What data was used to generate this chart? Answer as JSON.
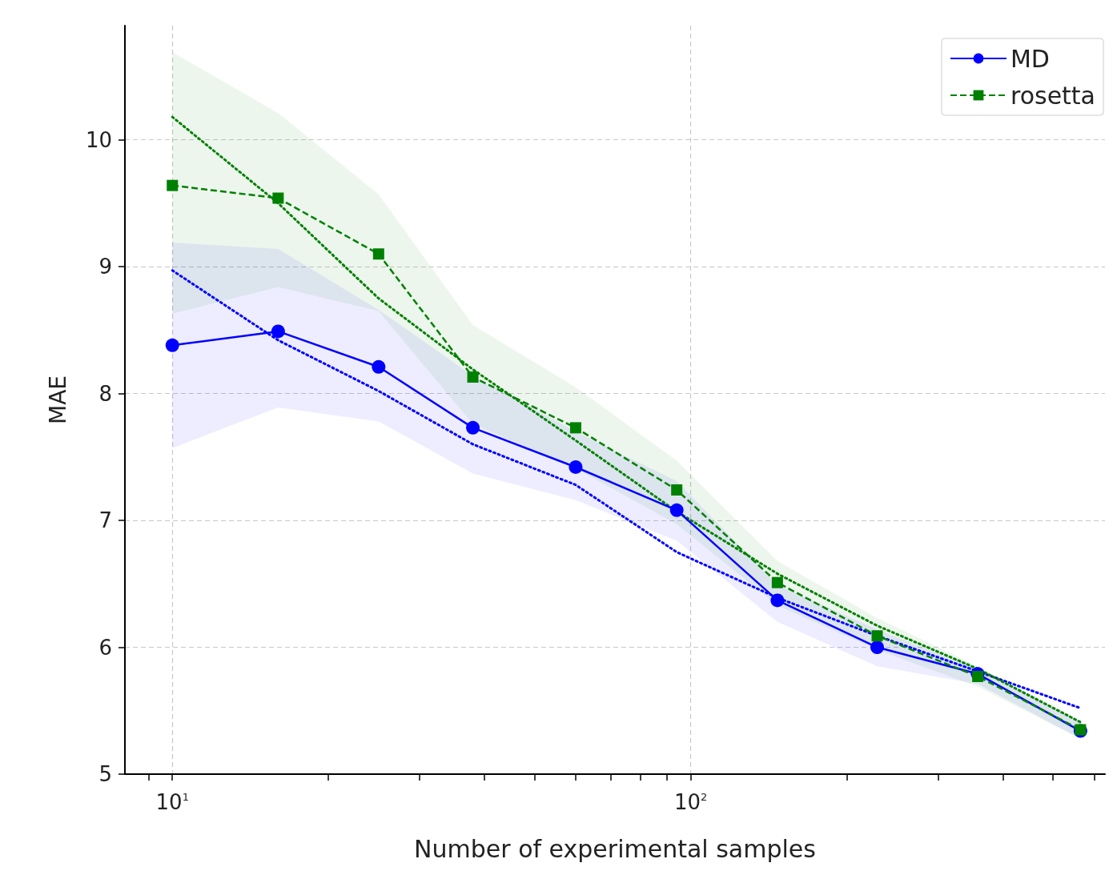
{
  "chart_data": {
    "type": "line",
    "xlabel": "Number of experimental samples",
    "ylabel": "MAE",
    "log": "x",
    "grid": true,
    "legend": "top right",
    "x": [
      10,
      16,
      25,
      38,
      60,
      94,
      147,
      229,
      358,
      565
    ],
    "xlim": [
      8.1,
      630
    ],
    "xticks": [
      {
        "value": 9,
        "label": null
      },
      {
        "value": 10,
        "label": "10$^{1}$"
      },
      {
        "value": 20,
        "label": null
      },
      {
        "value": 30,
        "label": null
      },
      {
        "value": 40,
        "label": null
      },
      {
        "value": 50,
        "label": null
      },
      {
        "value": 60,
        "label": null
      },
      {
        "value": 70,
        "label": null
      },
      {
        "value": 80,
        "label": null
      },
      {
        "value": 90,
        "label": null
      },
      {
        "value": 100,
        "label": "10$^{2}$"
      },
      {
        "value": 200,
        "label": null
      },
      {
        "value": 300,
        "label": null
      },
      {
        "value": 400,
        "label": null
      },
      {
        "value": 500,
        "label": null
      },
      {
        "value": 600,
        "label": null
      }
    ],
    "ylim": [
      5,
      10.9
    ],
    "yticks": [
      5,
      6,
      7,
      8,
      9,
      10
    ],
    "series": [
      {
        "name": "MD",
        "color": "#0000ff",
        "marker": "circle",
        "line_style": "solid",
        "values": [
          8.38,
          8.49,
          8.21,
          7.73,
          7.42,
          7.08,
          6.37,
          6.0,
          5.79,
          5.34
        ],
        "lower": [
          7.57,
          7.89,
          7.78,
          7.37,
          7.16,
          6.84,
          6.2,
          5.85,
          5.71,
          5.28
        ],
        "upper": [
          9.19,
          9.14,
          8.66,
          8.14,
          7.7,
          7.31,
          6.49,
          6.14,
          5.83,
          5.41
        ]
      },
      {
        "name": "rosetta",
        "color": "#008000",
        "marker": "square",
        "line_style": "dashed",
        "values": [
          9.64,
          9.54,
          9.1,
          8.13,
          7.73,
          7.24,
          6.51,
          6.09,
          5.77,
          5.35
        ],
        "lower": [
          8.63,
          8.84,
          8.65,
          7.76,
          7.41,
          6.97,
          6.33,
          5.98,
          5.69,
          5.28
        ],
        "upper": [
          10.69,
          10.21,
          9.57,
          8.54,
          8.05,
          7.47,
          6.68,
          6.23,
          5.85,
          5.42
        ]
      },
      {
        "type": "line",
        "color": "#0000ff",
        "marker": "none",
        "line_style": "dotted",
        "values": [
          8.97,
          8.42,
          8.02,
          7.6,
          7.28,
          6.75,
          6.39,
          6.09,
          5.81,
          5.52
        ]
      },
      {
        "type": "line",
        "color": "#008000",
        "marker": "none",
        "line_style": "dotted",
        "values": [
          10.18,
          9.5,
          8.75,
          8.19,
          7.63,
          7.07,
          6.58,
          6.17,
          5.83,
          5.41
        ]
      }
    ]
  }
}
